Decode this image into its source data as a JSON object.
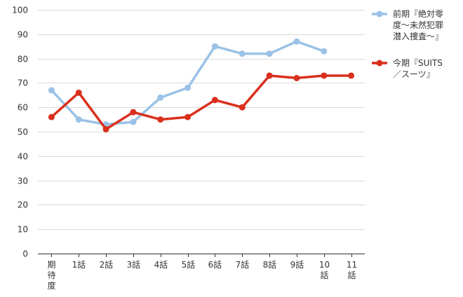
{
  "chart_data": {
    "type": "line",
    "categories": [
      [
        "期",
        "待",
        "度"
      ],
      [
        "1話"
      ],
      [
        "2話"
      ],
      [
        "3話"
      ],
      [
        "4話"
      ],
      [
        "5話"
      ],
      [
        "6話"
      ],
      [
        "7話"
      ],
      [
        "8話"
      ],
      [
        "9話"
      ],
      [
        "10",
        "話"
      ],
      [
        "11",
        "話"
      ]
    ],
    "ylim": [
      0,
      100
    ],
    "yticks": [
      0,
      10,
      20,
      30,
      40,
      50,
      60,
      70,
      80,
      90,
      100
    ],
    "grid": true,
    "legend": "right",
    "series": [
      {
        "name": [
          "前期『絶対零",
          "度～未然犯罪",
          "潜入捜査～』"
        ],
        "color": "#9bc2e6",
        "values": [
          67,
          55,
          53,
          54,
          64,
          68,
          85,
          82,
          82,
          87,
          83,
          null
        ]
      },
      {
        "name": [
          "今期『SUITS",
          "／スーツ』"
        ],
        "color": "#d9301d",
        "values": [
          56,
          66,
          51,
          58,
          55,
          56,
          63,
          60,
          73,
          72,
          73,
          73
        ]
      }
    ]
  }
}
